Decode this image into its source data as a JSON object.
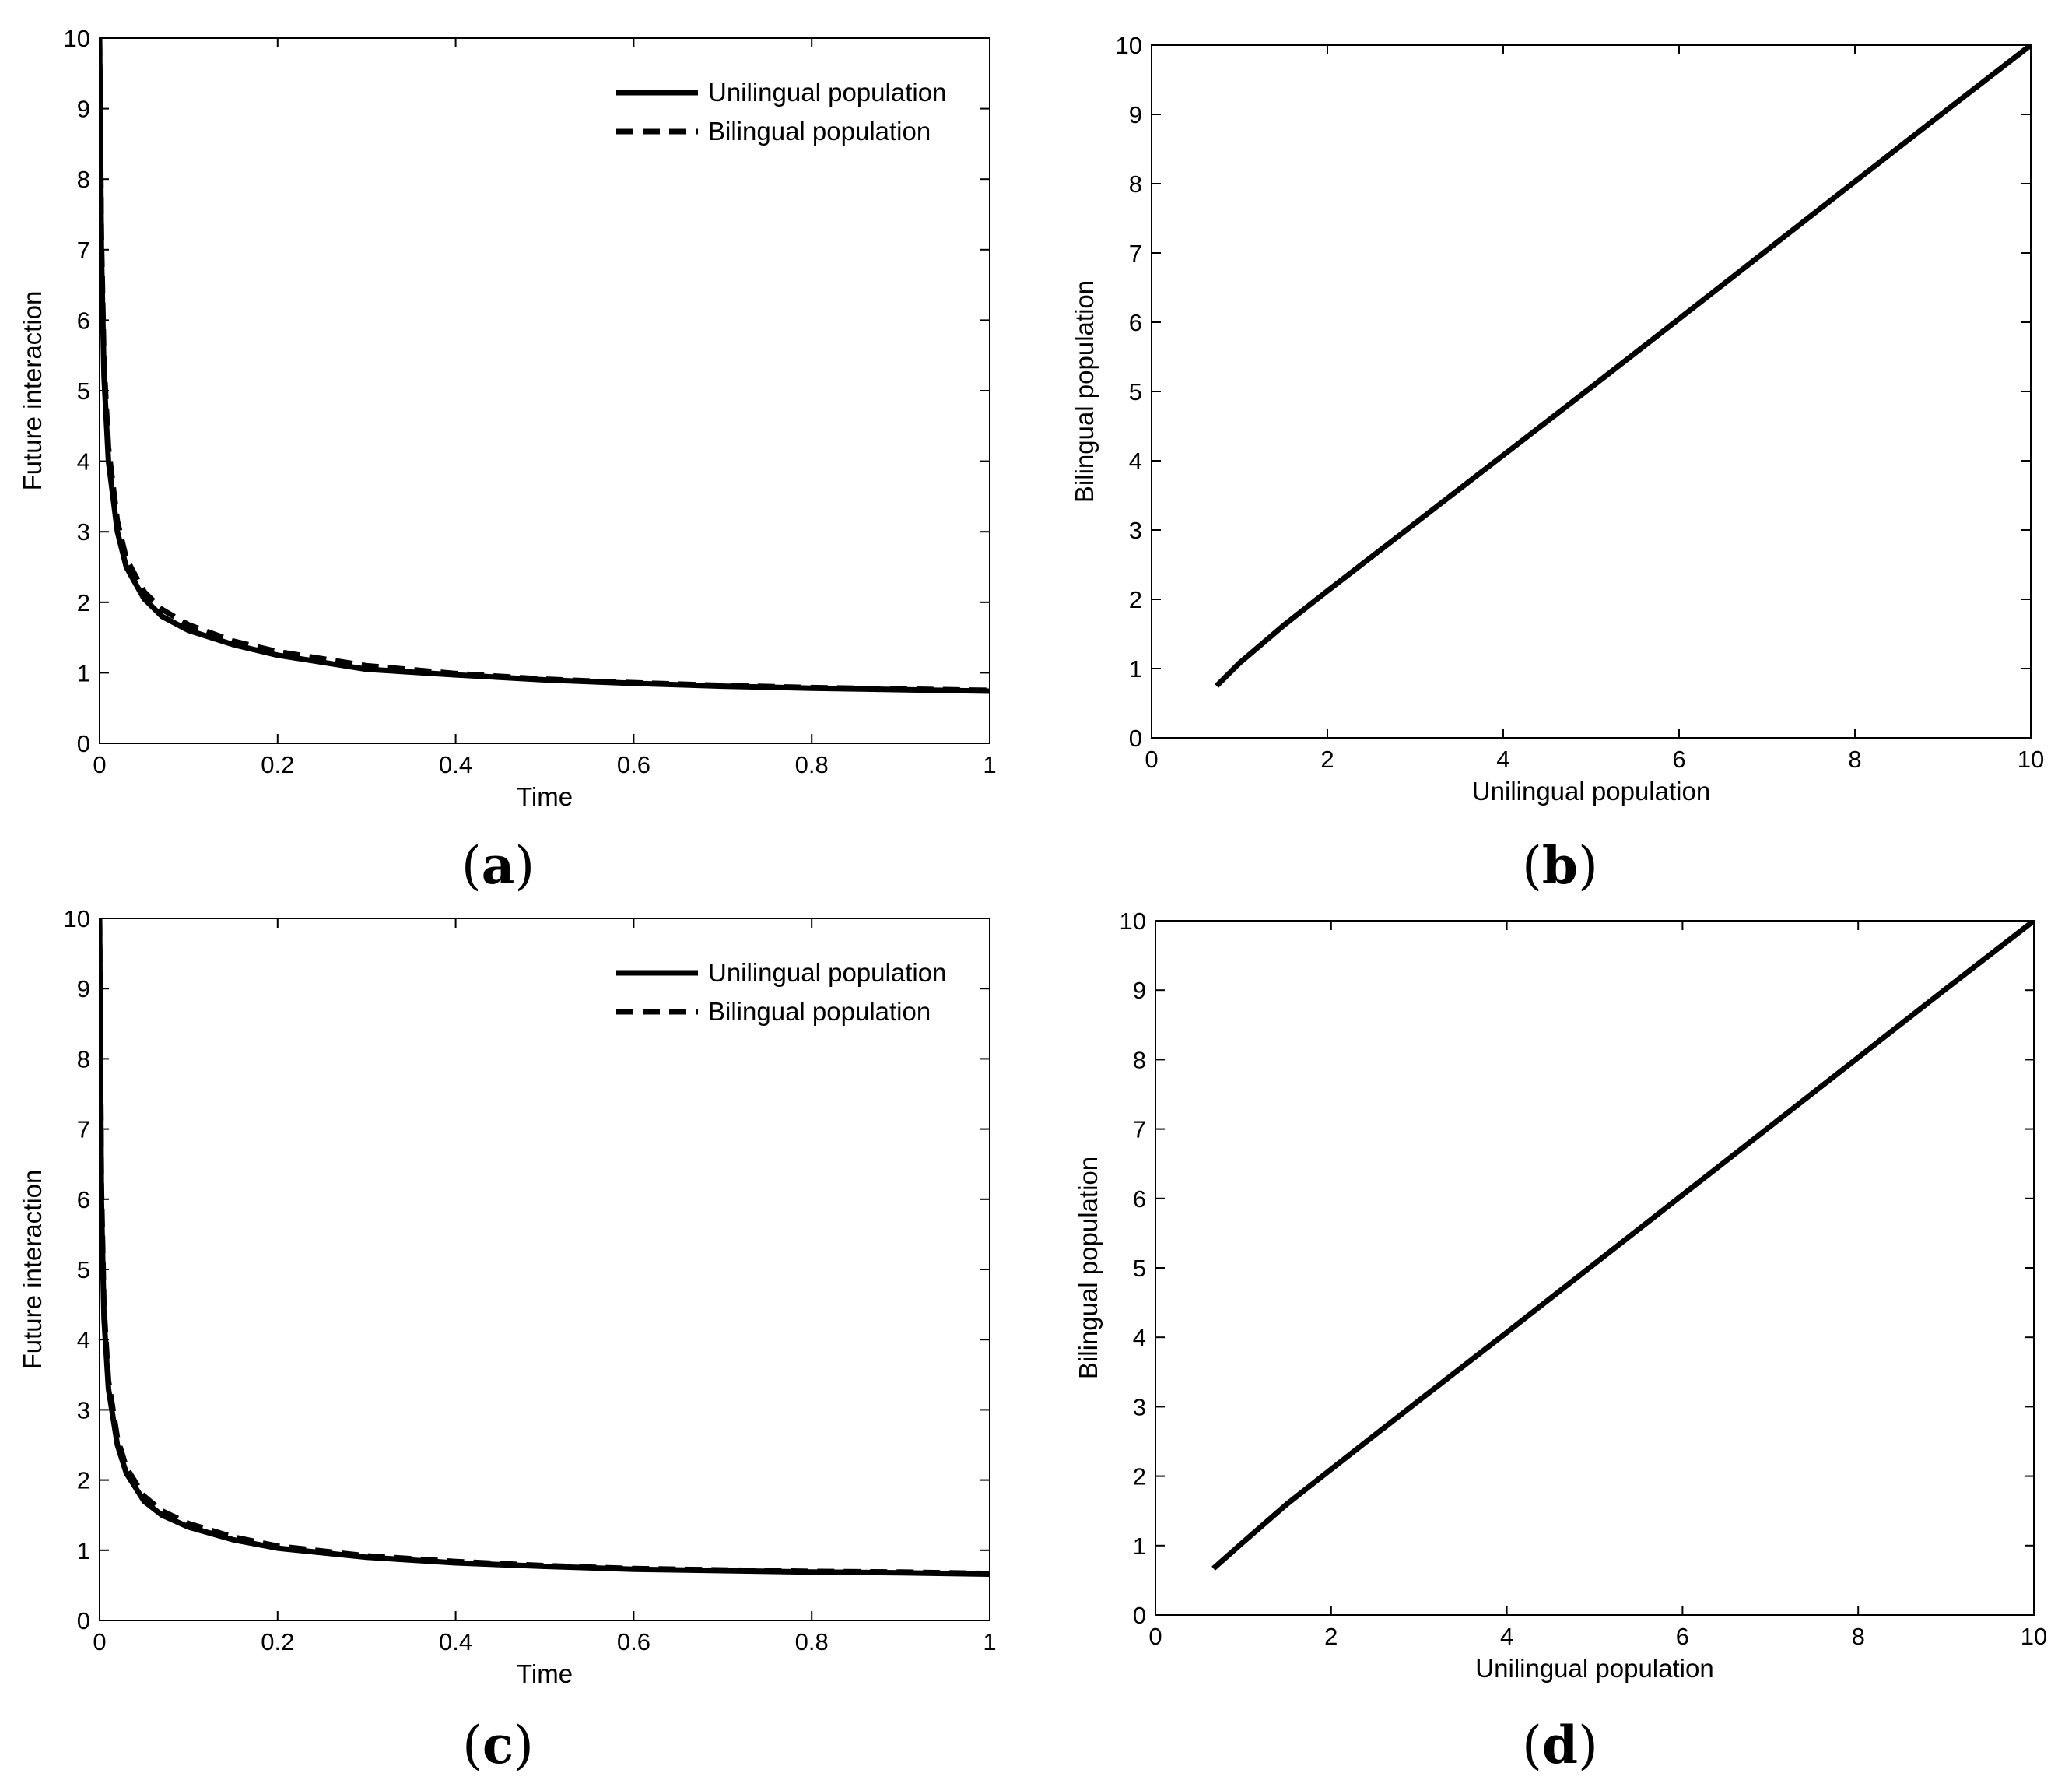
{
  "chart_data": [
    {
      "panel": "(a)",
      "caption_letter": "a",
      "type": "line",
      "xlabel": "Time",
      "ylabel": "Future interaction",
      "xlim": [
        0,
        1
      ],
      "ylim": [
        0,
        10
      ],
      "xticks": [
        "0",
        "0.2",
        "0.4",
        "0.6",
        "0.8",
        "1"
      ],
      "yticks": [
        "0",
        "1",
        "2",
        "3",
        "4",
        "5",
        "6",
        "7",
        "8",
        "9",
        "10"
      ],
      "legend": "top-right",
      "grid": false,
      "series": [
        {
          "name": "Unilingual population",
          "style": "solid",
          "color": "#000000",
          "x": [
            0,
            0.002,
            0.005,
            0.01,
            0.02,
            0.03,
            0.05,
            0.07,
            0.1,
            0.15,
            0.2,
            0.3,
            0.4,
            0.5,
            0.6,
            0.7,
            0.8,
            0.9,
            1.0
          ],
          "y": [
            10.0,
            7.0,
            5.2,
            4.0,
            3.0,
            2.5,
            2.05,
            1.8,
            1.6,
            1.4,
            1.25,
            1.05,
            0.97,
            0.9,
            0.85,
            0.81,
            0.78,
            0.76,
            0.74
          ]
        },
        {
          "name": "Bilingual population",
          "style": "dashed",
          "color": "#000000",
          "x": [
            0,
            0.002,
            0.005,
            0.01,
            0.02,
            0.03,
            0.05,
            0.07,
            0.1,
            0.15,
            0.2,
            0.3,
            0.4,
            0.5,
            0.6,
            0.7,
            0.8,
            0.9,
            1.0
          ],
          "y": [
            10.0,
            7.2,
            5.4,
            4.2,
            3.15,
            2.62,
            2.15,
            1.9,
            1.68,
            1.45,
            1.3,
            1.1,
            0.99,
            0.91,
            0.86,
            0.82,
            0.79,
            0.77,
            0.75
          ]
        }
      ]
    },
    {
      "panel": "(b)",
      "caption_letter": "b",
      "type": "line",
      "xlabel": "Unilingual population",
      "ylabel": "Bilingual population",
      "xlim": [
        0,
        10
      ],
      "ylim": [
        0,
        10
      ],
      "xticks": [
        "0",
        "2",
        "4",
        "6",
        "8",
        "10"
      ],
      "yticks": [
        "0",
        "1",
        "2",
        "3",
        "4",
        "5",
        "6",
        "7",
        "8",
        "9",
        "10"
      ],
      "grid": false,
      "series": [
        {
          "style": "solid",
          "color": "#000000",
          "x": [
            0.74,
            1.0,
            1.5,
            2.0,
            3.0,
            4.0,
            5.0,
            6.0,
            7.0,
            8.0,
            9.0,
            10.0
          ],
          "y": [
            0.75,
            1.08,
            1.62,
            2.12,
            3.1,
            4.08,
            5.06,
            6.05,
            7.04,
            8.03,
            9.02,
            10.0
          ]
        }
      ]
    },
    {
      "panel": "(c)",
      "caption_letter": "c",
      "type": "line",
      "xlabel": "Time",
      "ylabel": "Future interaction",
      "xlim": [
        0,
        1
      ],
      "ylim": [
        0,
        10
      ],
      "xticks": [
        "0",
        "0.2",
        "0.4",
        "0.6",
        "0.8",
        "1"
      ],
      "yticks": [
        "0",
        "1",
        "2",
        "3",
        "4",
        "5",
        "6",
        "7",
        "8",
        "9",
        "10"
      ],
      "legend": "top-right",
      "grid": false,
      "series": [
        {
          "name": "Unilingual population",
          "style": "solid",
          "color": "#000000",
          "x": [
            0,
            0.002,
            0.005,
            0.01,
            0.02,
            0.03,
            0.05,
            0.07,
            0.1,
            0.15,
            0.2,
            0.3,
            0.4,
            0.5,
            0.6,
            0.7,
            0.8,
            0.9,
            1.0
          ],
          "y": [
            10.0,
            6.0,
            4.3,
            3.3,
            2.5,
            2.1,
            1.7,
            1.5,
            1.33,
            1.15,
            1.03,
            0.9,
            0.82,
            0.77,
            0.73,
            0.71,
            0.69,
            0.68,
            0.66
          ]
        },
        {
          "name": "Bilingual population",
          "style": "dashed",
          "color": "#000000",
          "x": [
            0,
            0.002,
            0.005,
            0.01,
            0.02,
            0.03,
            0.05,
            0.07,
            0.1,
            0.15,
            0.2,
            0.3,
            0.4,
            0.5,
            0.6,
            0.7,
            0.8,
            0.9,
            1.0
          ],
          "y": [
            10.0,
            6.2,
            4.45,
            3.42,
            2.6,
            2.18,
            1.77,
            1.56,
            1.38,
            1.19,
            1.06,
            0.92,
            0.84,
            0.78,
            0.74,
            0.72,
            0.7,
            0.69,
            0.67
          ]
        }
      ]
    },
    {
      "panel": "(d)",
      "caption_letter": "d",
      "type": "line",
      "xlabel": "Unilingual population",
      "ylabel": "Bilingual population",
      "xlim": [
        0,
        10
      ],
      "ylim": [
        0,
        10
      ],
      "xticks": [
        "0",
        "2",
        "4",
        "6",
        "8",
        "10"
      ],
      "yticks": [
        "0",
        "1",
        "2",
        "3",
        "4",
        "5",
        "6",
        "7",
        "8",
        "9",
        "10"
      ],
      "grid": false,
      "series": [
        {
          "style": "solid",
          "color": "#000000",
          "x": [
            0.66,
            1.0,
            1.5,
            2.0,
            3.0,
            4.0,
            5.0,
            6.0,
            7.0,
            8.0,
            9.0,
            10.0
          ],
          "y": [
            0.67,
            1.05,
            1.6,
            2.1,
            3.09,
            4.07,
            5.06,
            6.05,
            7.04,
            8.03,
            9.02,
            10.0
          ]
        }
      ]
    }
  ]
}
